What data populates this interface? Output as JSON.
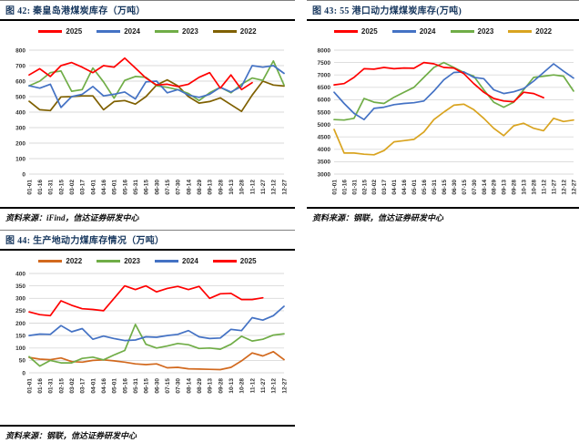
{
  "page": {
    "background": "#FFFFFF"
  },
  "colors": {
    "red_2025": "#FF0000",
    "blue_2024": "#4472C4",
    "green_2023": "#70AD47",
    "olive_2022": "#7F6000",
    "gold_2022": "#D9A420",
    "orange_2022": "#D2691E",
    "title_navy": "#17375E",
    "grid": "#D9D9D9",
    "axis_text": "#333333"
  },
  "figures": [
    {
      "id": "fig42",
      "title": "图 42: 秦皇岛港煤炭库存（万吨）",
      "source": "资料来源：iFind，信达证券研发中心"
    },
    {
      "id": "fig43",
      "title": "图 43: 55 港口动力煤煤炭库存(万吨)",
      "source": "资料来源：钢联，信达证券研发中心"
    },
    {
      "id": "fig44",
      "title": "图 44: 生产地动力煤库存情况（万吨）",
      "source": "资料来源：钢联，信达证券研发中心"
    }
  ],
  "chart_data": [
    {
      "type": "line",
      "title": "图 42: 秦皇岛港煤炭库存（万吨）",
      "xlabel": "",
      "ylabel": "",
      "ylim": [
        0,
        800
      ],
      "ytick_step": 100,
      "grid": true,
      "legend_position": "top",
      "categories": [
        "01-01",
        "01-16",
        "01-31",
        "02-15",
        "03-02",
        "03-17",
        "04-01",
        "04-16",
        "05-01",
        "05-16",
        "05-31",
        "06-15",
        "06-30",
        "07-15",
        "07-30",
        "08-14",
        "08-29",
        "09-13",
        "09-28",
        "10-13",
        "10-28",
        "11-12",
        "11-27",
        "12-12",
        "12-27"
      ],
      "series": [
        {
          "name": "2025",
          "color": "#FF0000",
          "values": [
            640,
            680,
            630,
            700,
            720,
            690,
            655,
            700,
            690,
            748,
            685,
            620,
            575,
            580,
            565,
            580,
            625,
            655,
            555,
            640,
            545,
            590
          ]
        },
        {
          "name": "2024",
          "color": "#4472C4",
          "values": [
            570,
            555,
            580,
            430,
            500,
            515,
            565,
            505,
            515,
            530,
            485,
            595,
            600,
            525,
            545,
            510,
            495,
            515,
            560,
            530,
            565,
            700,
            690,
            700,
            650
          ]
        },
        {
          "name": "2023",
          "color": "#70AD47",
          "values": [
            570,
            600,
            655,
            665,
            535,
            545,
            685,
            595,
            490,
            605,
            630,
            625,
            570,
            560,
            545,
            520,
            475,
            525,
            560,
            525,
            580,
            620,
            605,
            730,
            575
          ]
        },
        {
          "name": "2022",
          "color": "#7F6000",
          "values": [
            470,
            415,
            410,
            498,
            500,
            505,
            505,
            415,
            468,
            475,
            452,
            500,
            575,
            608,
            570,
            500,
            458,
            468,
            492,
            448,
            405,
            510,
            600,
            575,
            568
          ]
        }
      ]
    },
    {
      "type": "line",
      "title": "图 43: 55 港口动力煤煤炭库存(万吨)",
      "xlabel": "",
      "ylabel": "",
      "ylim": [
        3000,
        8000
      ],
      "ytick_step": 500,
      "grid": true,
      "legend_position": "top",
      "categories": [
        "01-01",
        "01-16",
        "01-31",
        "02-15",
        "03-02",
        "03-17",
        "04-01",
        "04-16",
        "05-01",
        "05-16",
        "05-31",
        "06-15",
        "06-30",
        "07-15",
        "07-30",
        "08-14",
        "08-29",
        "09-13",
        "09-28",
        "10-13",
        "10-28",
        "11-12",
        "11-27",
        "12-12",
        "12-27"
      ],
      "series": [
        {
          "name": "2025",
          "color": "#FF0000",
          "values": [
            6600,
            6650,
            6900,
            7250,
            7230,
            7300,
            7250,
            7280,
            7270,
            7500,
            7450,
            7300,
            7280,
            7050,
            6650,
            6300,
            6050,
            5950,
            5920,
            6300,
            6250,
            6080
          ]
        },
        {
          "name": "2024",
          "color": "#4472C4",
          "values": [
            6300,
            5850,
            5450,
            5200,
            5650,
            5700,
            5800,
            5850,
            5880,
            5950,
            6350,
            6800,
            7100,
            7120,
            6900,
            6850,
            6400,
            6250,
            6320,
            6450,
            6750,
            7100,
            7450,
            7150,
            6870
          ]
        },
        {
          "name": "2023",
          "color": "#70AD47",
          "values": [
            5200,
            5180,
            5250,
            6050,
            5900,
            5850,
            6100,
            6300,
            6500,
            6900,
            7300,
            7500,
            7300,
            7100,
            6950,
            6400,
            5900,
            5700,
            5900,
            6400,
            6900,
            6950,
            7000,
            6950,
            6350
          ]
        },
        {
          "name": "2022",
          "color": "#D9A420",
          "values": [
            4800,
            3850,
            3850,
            3800,
            3780,
            3950,
            4300,
            4350,
            4400,
            4700,
            5200,
            5500,
            5780,
            5820,
            5600,
            5250,
            4850,
            4550,
            4950,
            5050,
            4850,
            4750,
            5250,
            5120,
            5180
          ]
        }
      ]
    },
    {
      "type": "line",
      "title": "图 44: 生产地动力煤库存情况（万吨）",
      "xlabel": "",
      "ylabel": "",
      "ylim": [
        0,
        400
      ],
      "ytick_step": 50,
      "grid": true,
      "legend_position": "top",
      "categories": [
        "01-01",
        "01-16",
        "01-31",
        "02-15",
        "03-02",
        "03-17",
        "04-01",
        "04-16",
        "05-01",
        "05-16",
        "05-31",
        "06-15",
        "06-30",
        "07-15",
        "07-30",
        "08-14",
        "08-29",
        "09-13",
        "09-28",
        "10-13",
        "10-28",
        "11-12",
        "11-27",
        "12-12",
        "12-27"
      ],
      "series": [
        {
          "name": "2022",
          "color": "#D2691E",
          "values": [
            62,
            55,
            53,
            60,
            45,
            43,
            50,
            52,
            48,
            43,
            36,
            33,
            36,
            20,
            22,
            16,
            15,
            14,
            13,
            22,
            48,
            80,
            68,
            85,
            53
          ]
        },
        {
          "name": "2023",
          "color": "#70AD47",
          "values": [
            65,
            27,
            50,
            40,
            40,
            58,
            63,
            52,
            72,
            90,
            195,
            115,
            100,
            108,
            118,
            113,
            98,
            100,
            95,
            115,
            147,
            128,
            135,
            152,
            157
          ]
        },
        {
          "name": "2024",
          "color": "#4472C4",
          "values": [
            150,
            156,
            155,
            190,
            165,
            178,
            135,
            148,
            138,
            130,
            132,
            145,
            143,
            150,
            155,
            170,
            145,
            138,
            140,
            175,
            170,
            222,
            212,
            230,
            268
          ]
        },
        {
          "name": "2025",
          "color": "#FF0000",
          "values": [
            245,
            234,
            230,
            290,
            272,
            258,
            255,
            250,
            300,
            350,
            335,
            350,
            326,
            340,
            348,
            335,
            348,
            300,
            318,
            320,
            295,
            295,
            302
          ]
        }
      ]
    }
  ]
}
